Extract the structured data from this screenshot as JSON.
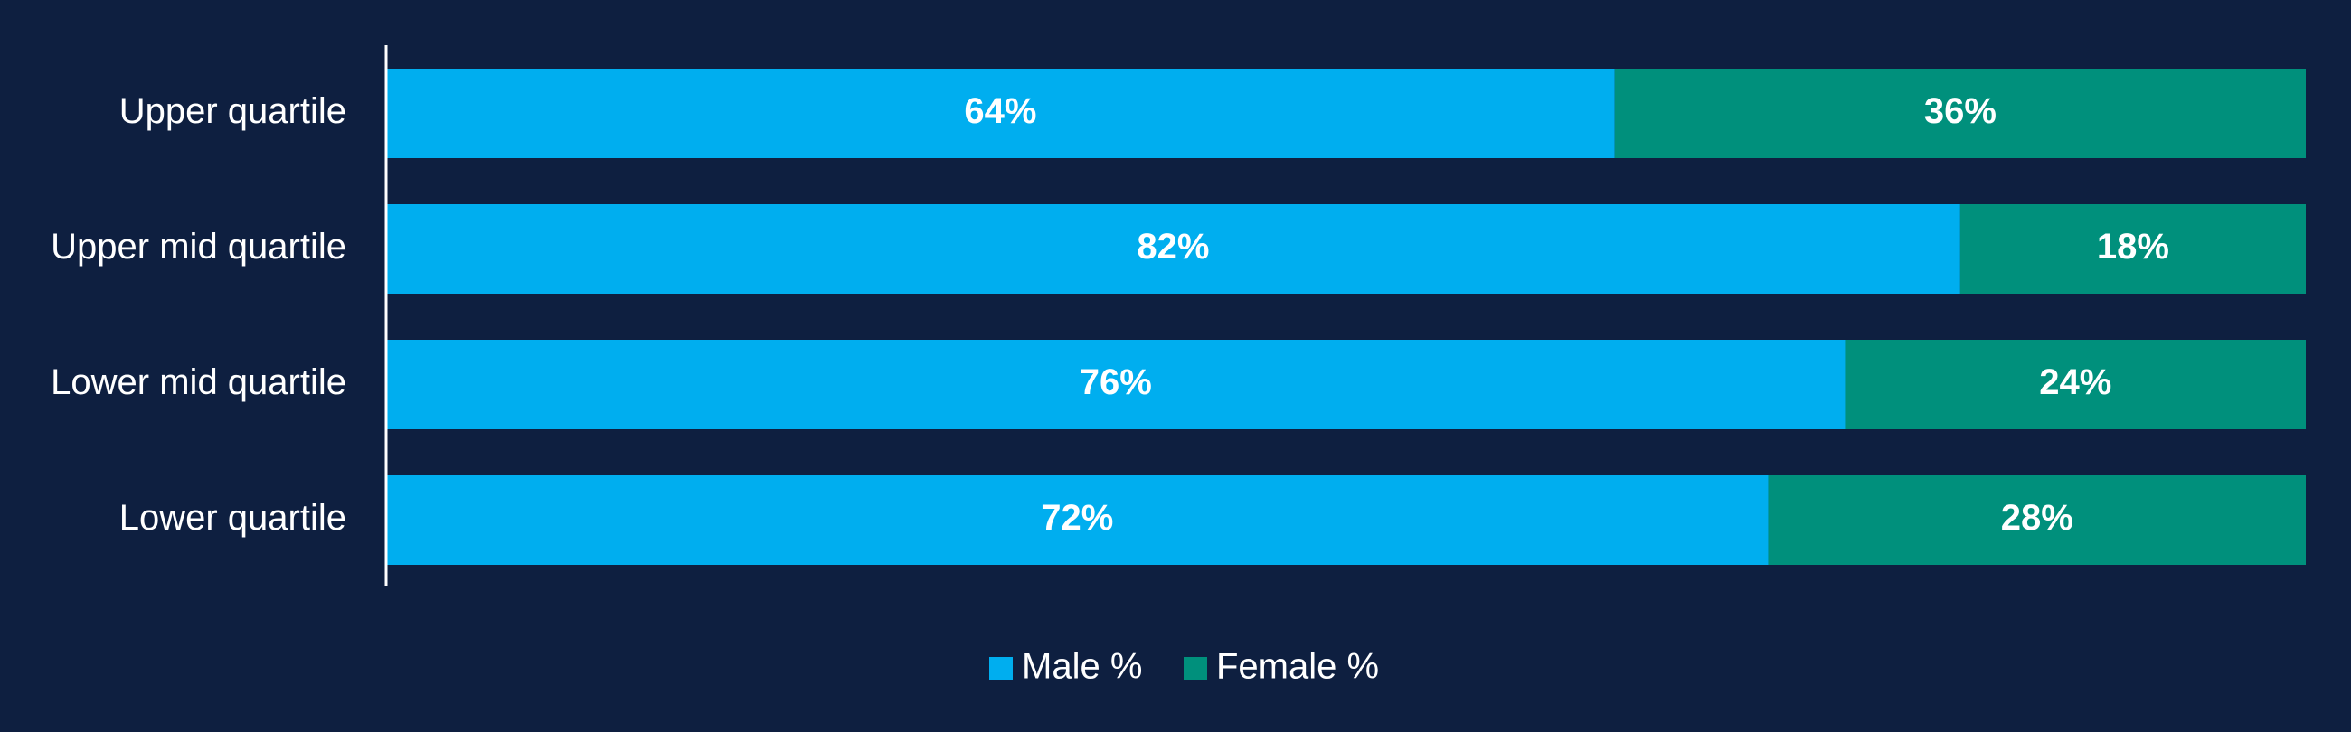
{
  "colors": {
    "background": "#0e1f40",
    "male": "#00aeef",
    "female": "#00907c",
    "axis": "#ffffff",
    "text": "#ffffff"
  },
  "chart_data": {
    "type": "bar",
    "orientation": "horizontal",
    "stacked": true,
    "categories": [
      "Upper quartile",
      "Upper mid quartile",
      "Lower mid quartile",
      "Lower quartile"
    ],
    "series": [
      {
        "name": "Male %",
        "values": [
          64,
          82,
          76,
          72
        ],
        "labels": [
          "64%",
          "82%",
          "76%",
          "72%"
        ],
        "color": "#00aeef"
      },
      {
        "name": "Female %",
        "values": [
          36,
          18,
          24,
          28
        ],
        "labels": [
          "36%",
          "18%",
          "24%",
          "28%"
        ],
        "color": "#00907c"
      }
    ],
    "xlim": [
      0,
      100
    ],
    "grid": false,
    "legend": "bottom"
  }
}
